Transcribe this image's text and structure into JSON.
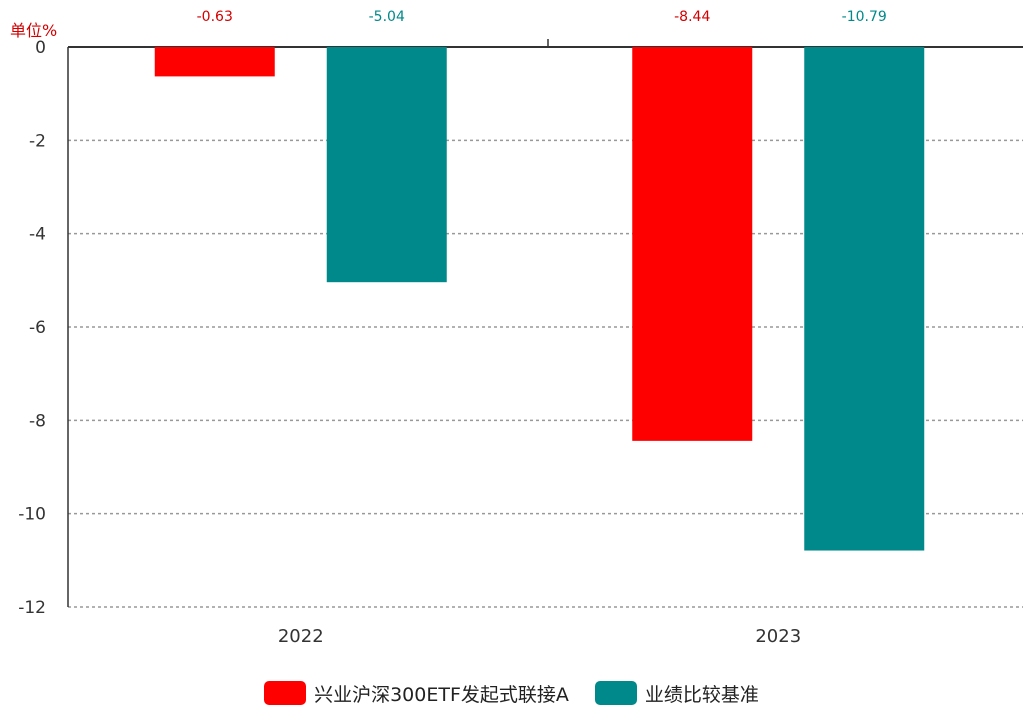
{
  "chart_data": {
    "type": "bar",
    "unit_label": "单位%",
    "categories": [
      "2022",
      "2023"
    ],
    "series": [
      {
        "name": "兴业沪深300ETF发起式联接A",
        "color": "#ff0000",
        "label_color": "#d40000",
        "values": [
          -0.63,
          -8.44
        ],
        "labels": [
          "-0.63",
          "-8.44"
        ]
      },
      {
        "name": "业绩比较基准",
        "color": "#00898a",
        "label_color": "#00898a",
        "values": [
          -5.04,
          -10.79
        ],
        "labels": [
          "-5.04",
          "-10.79"
        ]
      }
    ],
    "ylim": [
      -12,
      0
    ],
    "yticks": [
      0,
      -2,
      -4,
      -6,
      -8,
      -10,
      -12
    ],
    "grid": true,
    "legend": "bottom"
  }
}
